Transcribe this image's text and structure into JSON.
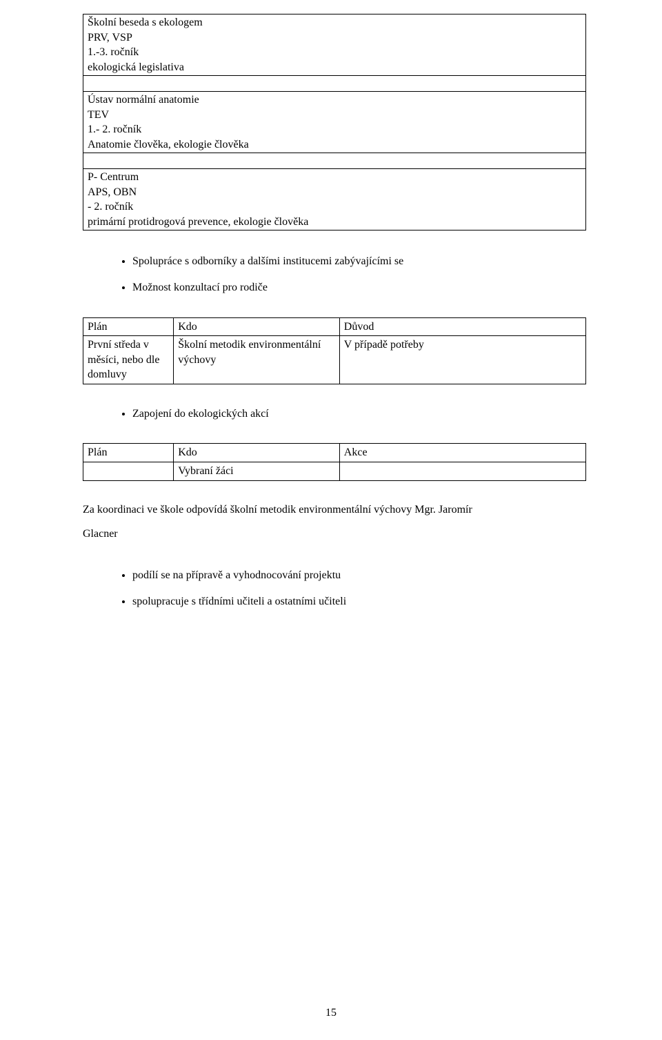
{
  "outerTable": {
    "rows": [
      {
        "lines": [
          "Školní beseda s ekologem",
          "PRV, VSP",
          "1.-3. ročník",
          "ekologická legislativa"
        ]
      },
      {
        "empty": true
      },
      {
        "lines": [
          "Ústav normální anatomie",
          "TEV",
          "1.- 2. ročník",
          "Anatomie člověka, ekologie člověka"
        ]
      },
      {
        "empty": true
      },
      {
        "lines": [
          "P- Centrum",
          "APS, OBN",
          "- 2. ročník",
          "primární protidrogová prevence, ekologie člověka"
        ]
      }
    ]
  },
  "bullets1": [
    "Spolupráce s odborníky a dalšími institucemi zabývajícími se",
    "Možnost konzultací pro rodiče"
  ],
  "table2": {
    "header": [
      "Plán",
      "Kdo",
      "Důvod"
    ],
    "row": {
      "c1": "První středa v měsíci, nebo dle domluvy",
      "c2": "Školní metodik environmentální výchovy",
      "c3": "V případě potřeby"
    }
  },
  "bullets2": [
    "Zapojení do ekologických akcí"
  ],
  "table3": {
    "header": [
      "Plán",
      "Kdo",
      "Akce"
    ],
    "row": {
      "c1": "",
      "c2": "Vybraní žáci",
      "c3": ""
    }
  },
  "coord_line1": "Za koordinaci ve škole odpovídá školní metodik environmentální výchovy Mgr. Jaromír",
  "coord_line2": "Glacner",
  "bullets3": [
    "podílí se na přípravě a vyhodnocování projektu",
    "spolupracuje s třídními učiteli a ostatními učiteli"
  ],
  "pageNumber": "15"
}
